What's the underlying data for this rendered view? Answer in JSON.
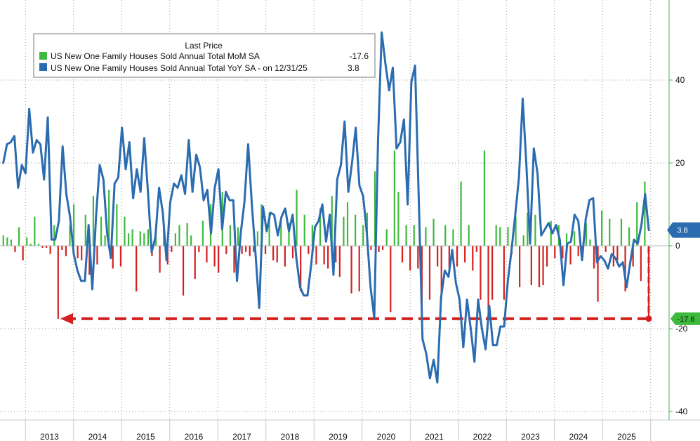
{
  "chart_data": {
    "type": "bar+line",
    "legend": {
      "title": "Last Price",
      "placement": "top-left",
      "entries": [
        {
          "name": "US New One Family Houses Sold Annual Total MoM SA",
          "value": "-17.6",
          "color": "#3dba3d"
        },
        {
          "name": "US New One Family Houses Sold Annual Total YoY SA -  on 12/31/25",
          "value": "3.8",
          "color": "#2b6cb0"
        }
      ]
    },
    "ylim": [
      -40,
      60
    ],
    "yticks": [
      40,
      20,
      0,
      -20,
      -40
    ],
    "ytick_labels": [
      "40",
      "20",
      "0",
      "-20",
      "-40"
    ],
    "xlabels": [
      "2013",
      "2014",
      "2015",
      "2016",
      "2017",
      "2018",
      "2019",
      "2020",
      "2021",
      "2022",
      "2023",
      "2024",
      "2025"
    ],
    "x_start": 2012.5,
    "x_end": 2026.0,
    "mom_series": {
      "name": "US New One Family Houses Sold Annual Total MoM SA",
      "values": [
        2.5,
        2.0,
        1.5,
        -1.5,
        4.5,
        -3.5,
        2.0,
        0.5,
        7.0,
        0.5,
        -0.5,
        -0.5,
        -2.0,
        5.0,
        -17.6,
        -1.0,
        -2.5,
        5.0,
        10.0,
        -3.0,
        -3.5,
        7.5,
        -7.0,
        12.0,
        -4.5,
        7.0,
        2.5,
        13.5,
        -5.5,
        10.0,
        -5.0,
        7.0,
        3.0,
        4.0,
        -11.0,
        3.5,
        3.0,
        4.0,
        -2.5,
        5.0,
        -6.5,
        6.0,
        -4.5,
        -1.5,
        3.0,
        5.0,
        -12.0,
        5.5,
        2.5,
        -8.0,
        -1.5,
        6.0,
        -4.0,
        10.0,
        -5.0,
        -6.5,
        13.0,
        -2.0,
        5.0,
        -6.5,
        4.5,
        -2.0,
        -1.5,
        -2.5,
        -1.5,
        3.5,
        10.0,
        -2.0,
        8.0,
        -3.5,
        -4.0,
        6.5,
        -5.0,
        5.5,
        -3.0,
        13.5,
        -11.0,
        7.5,
        -2.0,
        5.0,
        -4.5,
        9.0,
        -4.5,
        -5.5,
        12.0,
        -4.0,
        -7.5,
        7.0,
        10.5,
        -11.5,
        7.5,
        -11.0,
        5.0,
        8.0,
        -1.0,
        18.0,
        -1.5,
        -1.0,
        4.0,
        -16.0,
        23.0,
        13.0,
        -4.0,
        5.0,
        -6.0,
        5.0,
        -5.5,
        -16.5,
        4.5,
        -13.0,
        6.5,
        -5.0,
        -13.0,
        5.0,
        -5.5,
        4.0,
        -5.0,
        15.5,
        -4.0,
        5.0,
        -6.0,
        -1.5,
        -13.0,
        23.0,
        -18.0,
        -13.0,
        5.0,
        4.5,
        -13.0,
        4.5,
        -2.0,
        7.0,
        -10.0,
        2.5,
        8.0,
        -9.5,
        7.5,
        -10.0,
        -9.5,
        -5.0,
        6.0,
        -3.0,
        5.0,
        -3.0,
        3.0,
        -4.5,
        3.5,
        -2.5,
        -3.0,
        5.5,
        1.5,
        -5.5,
        -13.5,
        8.5,
        -1.5,
        6.5,
        -5.0,
        -3.5,
        6.5,
        -11.0,
        4.5,
        -5.0,
        10.5,
        -8.5,
        15.5,
        -17.6
      ]
    },
    "yoy_series": {
      "name": "US New One Family Houses Sold Annual Total YoY SA",
      "values": [
        20.0,
        24.5,
        25.0,
        26.5,
        14.0,
        19.5,
        17.5,
        33.0,
        22.5,
        25.5,
        24.5,
        16.0,
        31.0,
        1.5,
        1.5,
        6.0,
        24.0,
        12.5,
        7.0,
        -2.0,
        -6.0,
        -8.5,
        -8.5,
        5.0,
        -10.5,
        7.0,
        19.5,
        16.0,
        3.0,
        -3.0,
        15.0,
        16.5,
        28.5,
        18.5,
        25.0,
        11.5,
        18.5,
        13.0,
        26.0,
        13.0,
        -1.5,
        2.0,
        14.0,
        8.0,
        -3.5,
        10.5,
        15.0,
        14.0,
        17.0,
        12.5,
        25.5,
        13.0,
        22.0,
        19.0,
        11.0,
        13.5,
        3.0,
        14.0,
        18.5,
        4.0,
        13.0,
        11.0,
        11.0,
        -8.5,
        3.0,
        10.5,
        24.5,
        10.0,
        -2.0,
        -15.0,
        9.5,
        3.5,
        8.0,
        7.5,
        2.5,
        7.0,
        9.0,
        3.5,
        7.5,
        -3.0,
        -10.0,
        -12.0,
        -12.0,
        -4.5,
        4.5,
        6.0,
        10.0,
        1.0,
        7.5,
        -7.0,
        16.0,
        19.5,
        30.0,
        13.0,
        20.0,
        28.5,
        14.5,
        12.0,
        3.0,
        -10.0,
        -17.5,
        25.0,
        51.5,
        44.0,
        37.5,
        43.0,
        23.5,
        25.0,
        30.5,
        10.0,
        39.5,
        43.5,
        11.0,
        -22.5,
        -26.0,
        -32.0,
        -27.5,
        -33.0,
        -12.5,
        -6.0,
        -7.5,
        -1.0,
        -9.0,
        -13.0,
        -24.5,
        -13.0,
        -20.0,
        -28.0,
        -13.0,
        -20.0,
        -25.0,
        -14.5,
        -24.0,
        -24.0,
        -19.5,
        -19.5,
        -8.5,
        -1.0,
        7.5,
        16.5,
        35.5,
        19.5,
        0.5,
        23.5,
        17.5,
        2.5,
        4.0,
        5.5,
        3.0,
        5.0,
        1.5,
        -9.5,
        0.5,
        1.0,
        7.5,
        6.0,
        -3.5,
        6.5,
        11.0,
        11.5,
        -4.0,
        -2.5,
        -3.5,
        -5.5,
        -2.0,
        -3.0,
        -5.0,
        -4.0,
        -10.0,
        -4.0,
        1.5,
        0.5,
        5.0,
        12.5,
        3.8
      ]
    },
    "callout": {
      "label": "-17.6",
      "target_value": -17.6,
      "from_year": 2012.95
    }
  },
  "badges": {
    "yoy_last": "3.8",
    "mom_last": "-17.6",
    "yoy_color": "#2b6cb0",
    "mom_color": "#3dba3d"
  },
  "colors": {
    "positive_bar": "#3dba3d",
    "negative_bar": "#d42020",
    "line": "#2b6cb0",
    "callout": "#d42020"
  }
}
